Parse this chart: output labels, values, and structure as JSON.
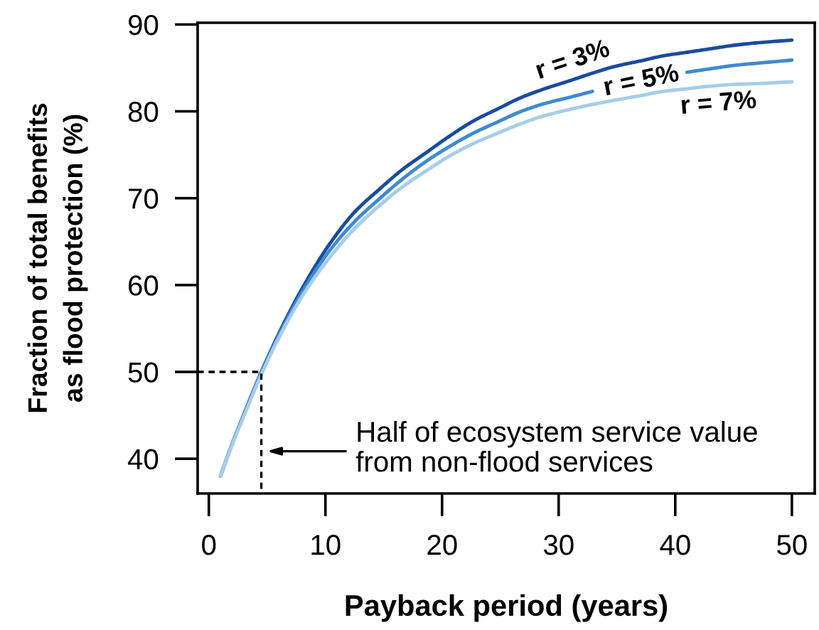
{
  "chart_data": {
    "type": "line",
    "xlabel": "Payback period (years)",
    "ylabel": "Fraction of total benefits\nas flood protection (%)",
    "xlim": [
      -0.96,
      51.96
    ],
    "xticks": [
      0,
      10,
      20,
      30,
      40,
      50
    ],
    "ylim": [
      36.0,
      90.2
    ],
    "yticks": [
      40,
      50,
      60,
      70,
      80,
      90
    ],
    "grid": false,
    "legend": false,
    "marker": "none",
    "line_style": "solid",
    "series": [
      {
        "name": "r = 3%",
        "color": "#1a4c9e",
        "x": [
          1,
          2,
          3,
          4.5,
          6,
          8,
          10.5,
          12.5,
          14.6,
          16.6,
          18.7,
          20.7,
          22.7,
          24.8,
          26.8,
          28.8,
          30.9,
          32.9,
          34.9,
          37,
          39,
          41,
          43,
          45,
          47.1,
          50
        ],
        "values": [
          38.0,
          41.7,
          45.1,
          50.0,
          54.4,
          59.6,
          65.0,
          68.4,
          71.0,
          73.3,
          75.3,
          77.2,
          78.9,
          80.3,
          81.6,
          82.6,
          83.5,
          84.4,
          85.2,
          85.8,
          86.4,
          86.8,
          87.2,
          87.6,
          87.9,
          88.2
        ]
      },
      {
        "name": "r = 5%",
        "color": "#3f8ad0",
        "x": [
          1,
          2,
          3,
          4.5,
          6,
          8,
          10.5,
          12.5,
          14.6,
          16.6,
          18.7,
          20.7,
          22.7,
          24.8,
          26.8,
          28.8,
          30.9,
          32.9,
          37,
          41,
          43,
          45.1,
          47.5,
          50
        ],
        "values": [
          38.0,
          41.7,
          45.0,
          49.9,
          54.2,
          59.2,
          64.2,
          67.3,
          69.9,
          72.2,
          74.3,
          76.0,
          77.5,
          78.8,
          80.0,
          80.9,
          81.6,
          82.3,
          null,
          84.5,
          84.9,
          85.3,
          85.6,
          85.9
        ]
      },
      {
        "name": "r = 7%",
        "color": "#a6cde9",
        "x": [
          1,
          2,
          3,
          4.5,
          6,
          8,
          10.5,
          12.5,
          14.6,
          16.6,
          18.7,
          20.7,
          22.7,
          24.8,
          26.8,
          28.8,
          30.9,
          32.9,
          34.9,
          37,
          39,
          41,
          43,
          45,
          47.1,
          50
        ],
        "values": [
          38.0,
          41.6,
          44.9,
          49.7,
          53.9,
          58.7,
          63.4,
          66.5,
          69.1,
          71.3,
          73.2,
          74.9,
          76.3,
          77.5,
          78.6,
          79.5,
          80.2,
          80.8,
          81.3,
          81.8,
          82.3,
          82.6,
          82.9,
          83.1,
          83.2,
          83.4
        ]
      },
      {
        "type": "line",
        "color": "#000000",
        "line_style": "dashed",
        "x": [
          -0.96,
          4.5,
          4.5
        ],
        "values": [
          50,
          50,
          36.0
        ]
      }
    ],
    "annotations": [
      "Half of ecosystem service value\nfrom non-flood services"
    ]
  }
}
